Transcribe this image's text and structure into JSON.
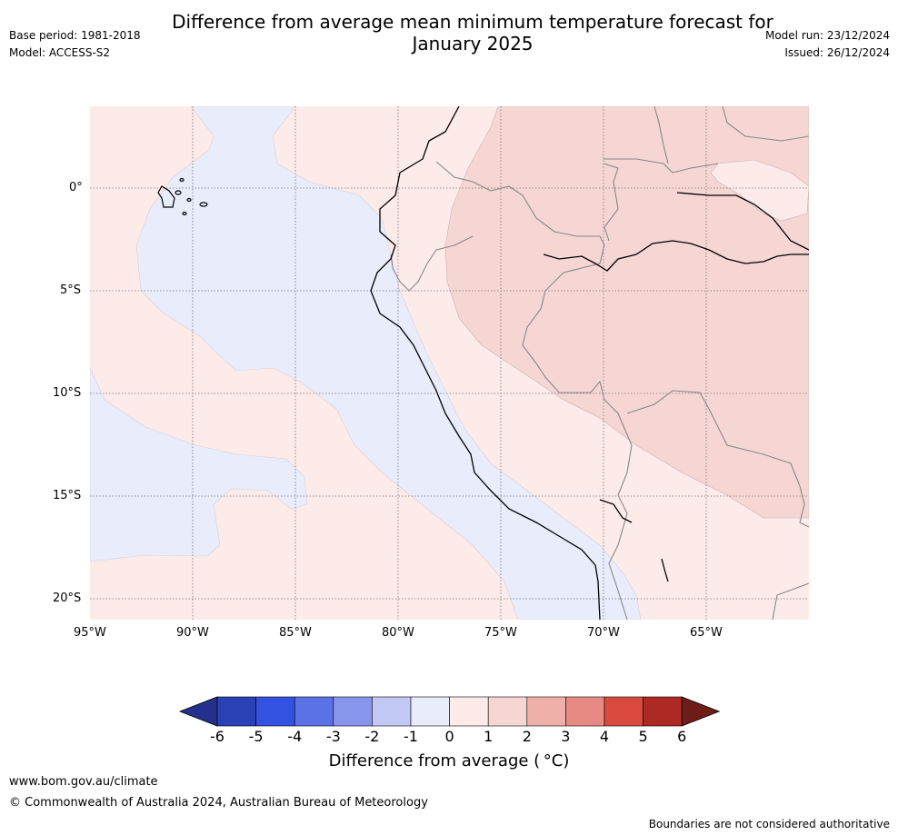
{
  "header": {
    "title_line1": "Difference from average mean minimum temperature forecast for",
    "title_line2": "January 2025",
    "base_period": "Base period: 1981-2018",
    "model": "Model: ACCESS-S2",
    "model_run": "Model run: 23/12/2024",
    "issued": "Issued: 26/12/2024"
  },
  "map": {
    "lat_labels": [
      "0°",
      "5°S",
      "10°S",
      "15°S",
      "20°S"
    ],
    "lon_labels": [
      "95°W",
      "90°W",
      "85°W",
      "80°W",
      "75°W",
      "70°W",
      "65°W"
    ],
    "colors": {
      "ocean_negative": "#e8ecfb",
      "light_positive": "#fcebe9",
      "medium_positive": "#f6d6d3"
    }
  },
  "colorbar": {
    "tick_labels": [
      "-6",
      "-5",
      "-4",
      "-3",
      "-2",
      "-1",
      "0",
      "1",
      "2",
      "3",
      "4",
      "5",
      "6"
    ],
    "colors": [
      "#24318c",
      "#2a40b5",
      "#3352e2",
      "#5a72e6",
      "#8796ea",
      "#c1c8f4",
      "#e8ecfb",
      "#fcebe9",
      "#f6d6d3",
      "#efb0aa",
      "#e78a83",
      "#db4a3e",
      "#ac2a23",
      "#6e1d18"
    ],
    "label": "Difference from average ( °C)"
  },
  "footer": {
    "url": "www.bom.gov.au/climate",
    "copyright": "© Commonwealth of Australia 2024, Australian Bureau of Meteorology",
    "disclaimer": "Boundaries are not considered authoritative"
  }
}
